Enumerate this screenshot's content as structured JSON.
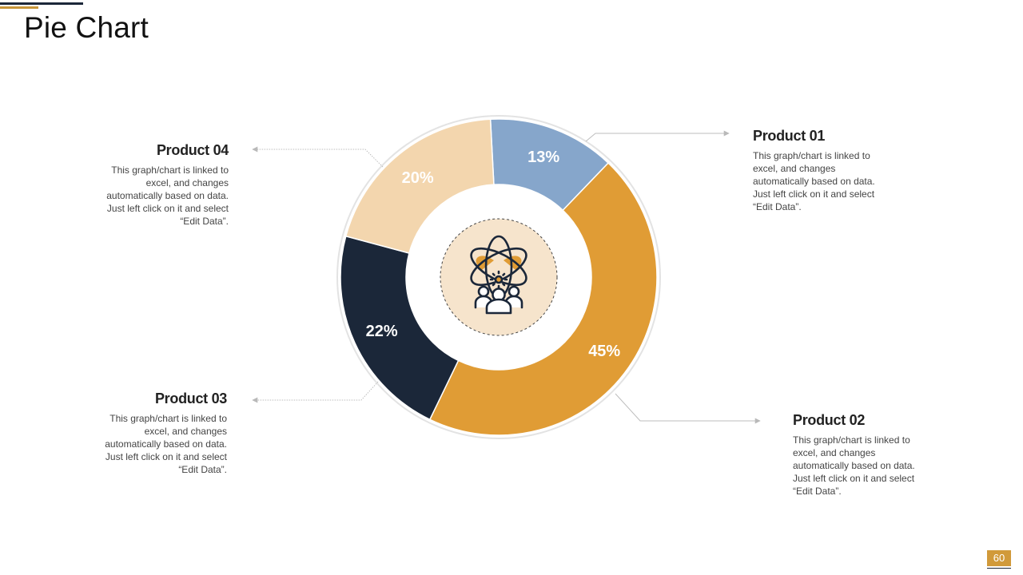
{
  "page": {
    "title": "Pie Chart",
    "page_number": "60"
  },
  "colors": {
    "dark_navy": "#1b2739",
    "gold": "#e09c35",
    "peach": "#f3d6ae",
    "blue": "#86a6cb",
    "center_fill": "#f6e4cc"
  },
  "center_icon": "atom-team-icon",
  "chart_data": {
    "type": "pie",
    "style": "donut",
    "start_angle_deg": -3,
    "direction": "clockwise",
    "categories": [
      "Product 01",
      "Product 02",
      "Product 03",
      "Product 04"
    ],
    "values": [
      13,
      45,
      22,
      20
    ],
    "value_labels": [
      "13%",
      "45%",
      "22%",
      "20%"
    ],
    "slice_colors": [
      "#86a6cb",
      "#e09c35",
      "#1b2739",
      "#f3d6ae"
    ],
    "value_label_colors": [
      "#ffffff",
      "#ffffff",
      "#ffffff",
      "#ffffff"
    ]
  },
  "products": [
    {
      "name": "Product 01",
      "description": "This graph/chart is linked to excel, and changes automatically based on data. Just left click on it and select “Edit Data”."
    },
    {
      "name": "Product 02",
      "description": "This graph/chart is linked to excel, and changes automatically based on data. Just left click on it and select “Edit Data”."
    },
    {
      "name": "Product 03",
      "description": "This graph/chart is linked to excel, and changes automatically based on data. Just left click on it and select “Edit Data”."
    },
    {
      "name": "Product 04",
      "description": "This graph/chart is linked to excel, and changes automatically based on data. Just left click on it and select “Edit Data”."
    }
  ]
}
